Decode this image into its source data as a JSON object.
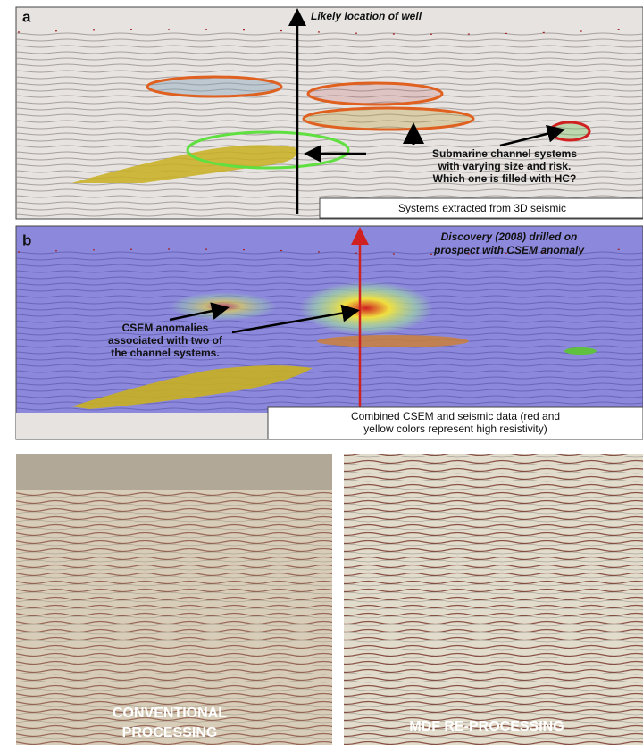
{
  "panel_a": {
    "label": "a",
    "well_label": "Likely location of well",
    "callout": [
      "Submarine channel systems",
      "with varying size and risk.",
      "Which one is filled with HC?"
    ],
    "caption": "Systems extracted from 3D seismic"
  },
  "panel_b": {
    "label": "b",
    "discovery": [
      "Discovery (2008) drilled on",
      "prospect with CSEM anomaly"
    ],
    "callout": [
      "CSEM anomalies",
      "associated with two of",
      "the channel systems."
    ],
    "caption": [
      "Combined CSEM and seismic data (red and",
      "yellow colors represent high resistivity)"
    ]
  },
  "bottom": {
    "left_label": [
      "CONVENTIONAL",
      "PROCESSING"
    ],
    "right_label": "MDF RE-PROCESSING"
  }
}
